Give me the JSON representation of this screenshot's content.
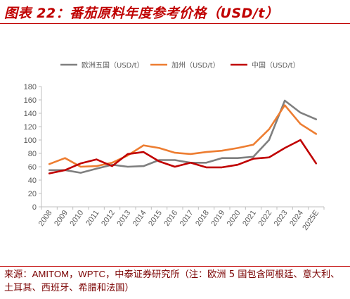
{
  "header": {
    "title": "图表 22：番茄原料年度参考价格（USD/t）"
  },
  "footer": {
    "source_prefix": "来源：",
    "source_orgs": "AMITOM，WPTC",
    "source_rest": "，中泰证券研究所（注：欧洲 5 国包含阿根廷、意大利、土耳其、西班牙、希腊和法国）"
  },
  "chart_data": {
    "type": "line",
    "categories": [
      "2008",
      "2009",
      "2010",
      "2011",
      "2012",
      "2013",
      "2014",
      "2015",
      "2016",
      "2017",
      "2018",
      "2019",
      "2020",
      "2021",
      "2022",
      "2023",
      "2024",
      "2025E"
    ],
    "ylim": [
      0,
      180
    ],
    "yticks": [
      0,
      20,
      40,
      60,
      80,
      100,
      120,
      140,
      160,
      180
    ],
    "grid": false,
    "legend_position": "top",
    "series": [
      {
        "name": "欧洲五国（USD/t）",
        "color": "#7f7f7f",
        "values": [
          55,
          55,
          51,
          57,
          63,
          60,
          61,
          70,
          70,
          66,
          66,
          73,
          73,
          75,
          100,
          159,
          141,
          131
        ]
      },
      {
        "name": "加州（USD/t）",
        "color": "#ed7d31",
        "values": [
          64,
          73,
          60,
          61,
          66,
          77,
          92,
          88,
          81,
          79,
          82,
          84,
          88,
          93,
          116,
          152,
          124,
          109
        ]
      },
      {
        "name": "中国（USD/t）",
        "color": "#c00000",
        "values": [
          50,
          55,
          65,
          71,
          61,
          79,
          82,
          68,
          60,
          66,
          59,
          59,
          63,
          72,
          74,
          88,
          100,
          65
        ]
      }
    ]
  }
}
